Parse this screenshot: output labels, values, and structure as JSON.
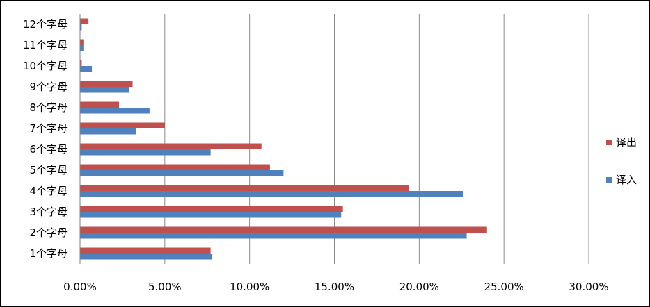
{
  "chart_data": {
    "type": "bar",
    "orientation": "horizontal",
    "categories": [
      "1个字母",
      "2个字母",
      "3个字母",
      "4个字母",
      "5个字母",
      "6个字母",
      "7个字母",
      "8个字母",
      "9个字母",
      "10个字母",
      "11个字母",
      "12个字母"
    ],
    "series": [
      {
        "name": "译出",
        "color": "#C0504D",
        "values": [
          0.077,
          0.24,
          0.155,
          0.194,
          0.112,
          0.107,
          0.05,
          0.023,
          0.031,
          0.001,
          0.002,
          0.005
        ]
      },
      {
        "name": "译入",
        "color": "#4F81BD",
        "values": [
          0.078,
          0.228,
          0.154,
          0.226,
          0.12,
          0.077,
          0.033,
          0.041,
          0.029,
          0.007,
          0.002,
          0.001
        ]
      }
    ],
    "xlim": [
      0,
      0.3
    ],
    "xticks": [
      0,
      0.05,
      0.1,
      0.15,
      0.2,
      0.25,
      0.3
    ],
    "xtick_labels": [
      "0.00%",
      "5.00%",
      "10.00%",
      "15.00%",
      "20.00%",
      "25.00%",
      "30.00%"
    ],
    "grid": "vertical",
    "legend_position": "right",
    "title": "",
    "xlabel": "",
    "ylabel": ""
  }
}
